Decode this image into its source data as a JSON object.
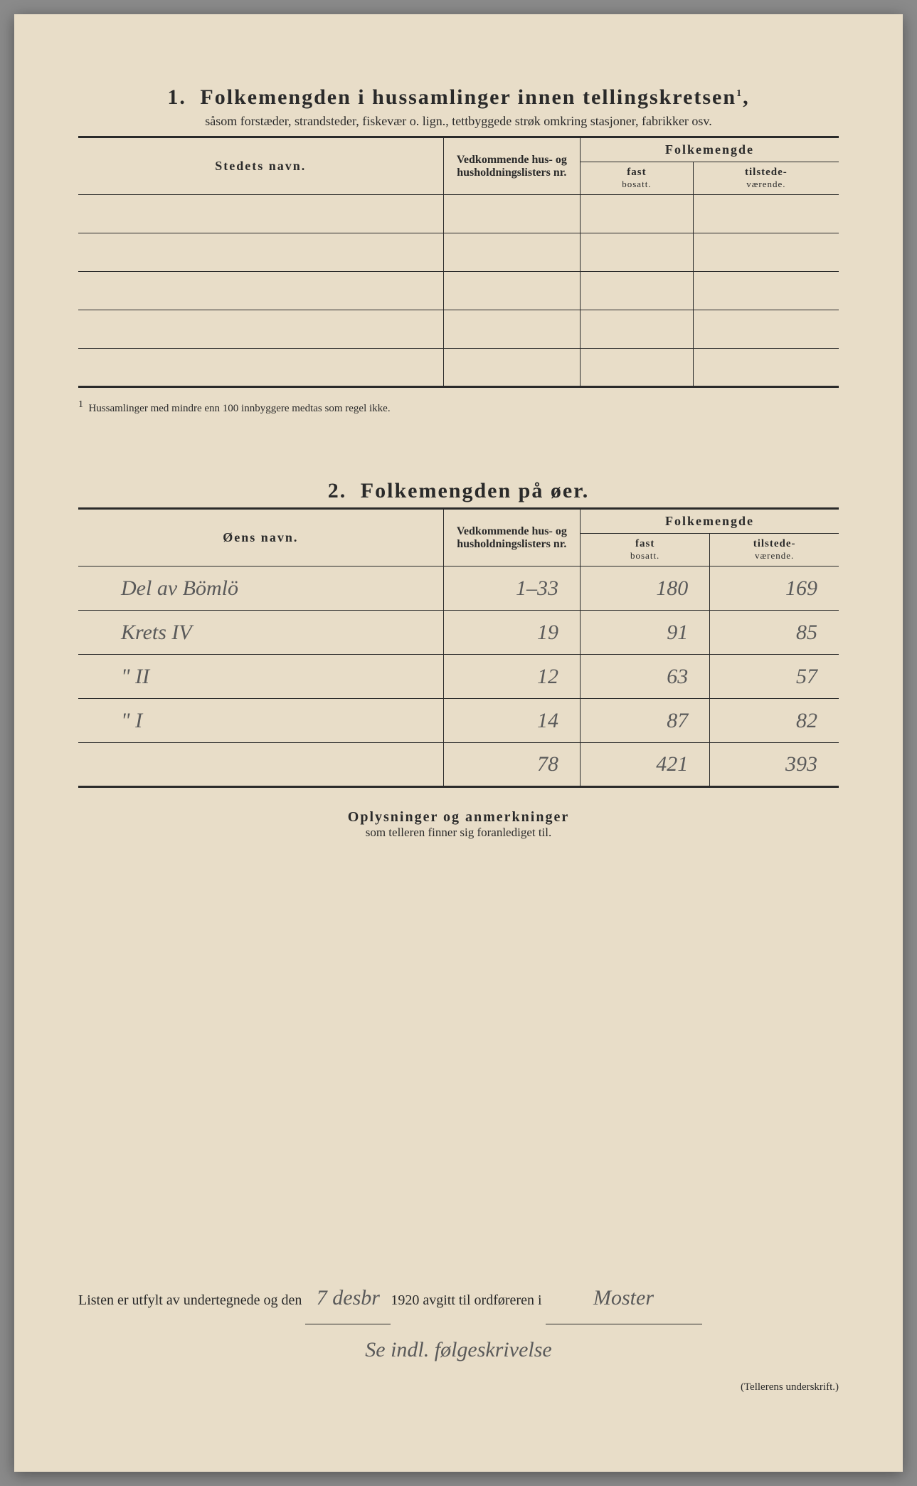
{
  "section1": {
    "number": "1.",
    "title": "Folkemengden i hussamlinger innen tellingskretsen",
    "title_sup": "1",
    "subtitle": "såsom forstæder, strandsteder, fiskevær o. lign., tettbyggede strøk omkring stasjoner, fabrikker osv.",
    "columns": {
      "name": "Stedets navn.",
      "lists": "Vedkommende hus- og husholdningslisters nr.",
      "pop_header": "Folkemengde",
      "fast": "fast",
      "fast_sub": "bosatt.",
      "tilstede": "tilstede-",
      "tilstede_sub": "værende."
    },
    "footnote_marker": "1",
    "footnote": "Hussamlinger med mindre enn 100 innbyggere medtas som regel ikke."
  },
  "section2": {
    "number": "2.",
    "title": "Folkemengden på øer.",
    "columns": {
      "name": "Øens navn.",
      "lists": "Vedkommende hus- og husholdningslisters nr.",
      "pop_header": "Folkemengde",
      "fast": "fast",
      "fast_sub": "bosatt.",
      "tilstede": "tilstede-",
      "tilstede_sub": "værende."
    },
    "rows": [
      {
        "name": "Del av Bömlö",
        "nr": "1–33",
        "fast": "180",
        "tilst": "169"
      },
      {
        "name": "Krets IV",
        "nr": "19",
        "fast": "91",
        "tilst": "85"
      },
      {
        "name": "\"   II",
        "nr": "12",
        "fast": "63",
        "tilst": "57"
      },
      {
        "name": "\"   I",
        "nr": "14",
        "fast": "87",
        "tilst": "82"
      }
    ],
    "total": {
      "nr": "78",
      "fast": "421",
      "tilst": "393"
    }
  },
  "anm": {
    "title": "Oplysninger og anmerkninger",
    "sub": "som telleren finner sig foranlediget til."
  },
  "footer": {
    "prefix": "Listen er utfylt av undertegnede og den",
    "date": "7 desbr",
    "year": "1920",
    "mid": "avgitt til ordføreren i",
    "place": "Moster",
    "signature_line": "Se indl. følgeskrivelse",
    "signature_label": "(Tellerens underskrift.)"
  },
  "style": {
    "paper": "#e8ddc8",
    "ink": "#2a2a2a",
    "handwriting": "#5a5a5a"
  }
}
